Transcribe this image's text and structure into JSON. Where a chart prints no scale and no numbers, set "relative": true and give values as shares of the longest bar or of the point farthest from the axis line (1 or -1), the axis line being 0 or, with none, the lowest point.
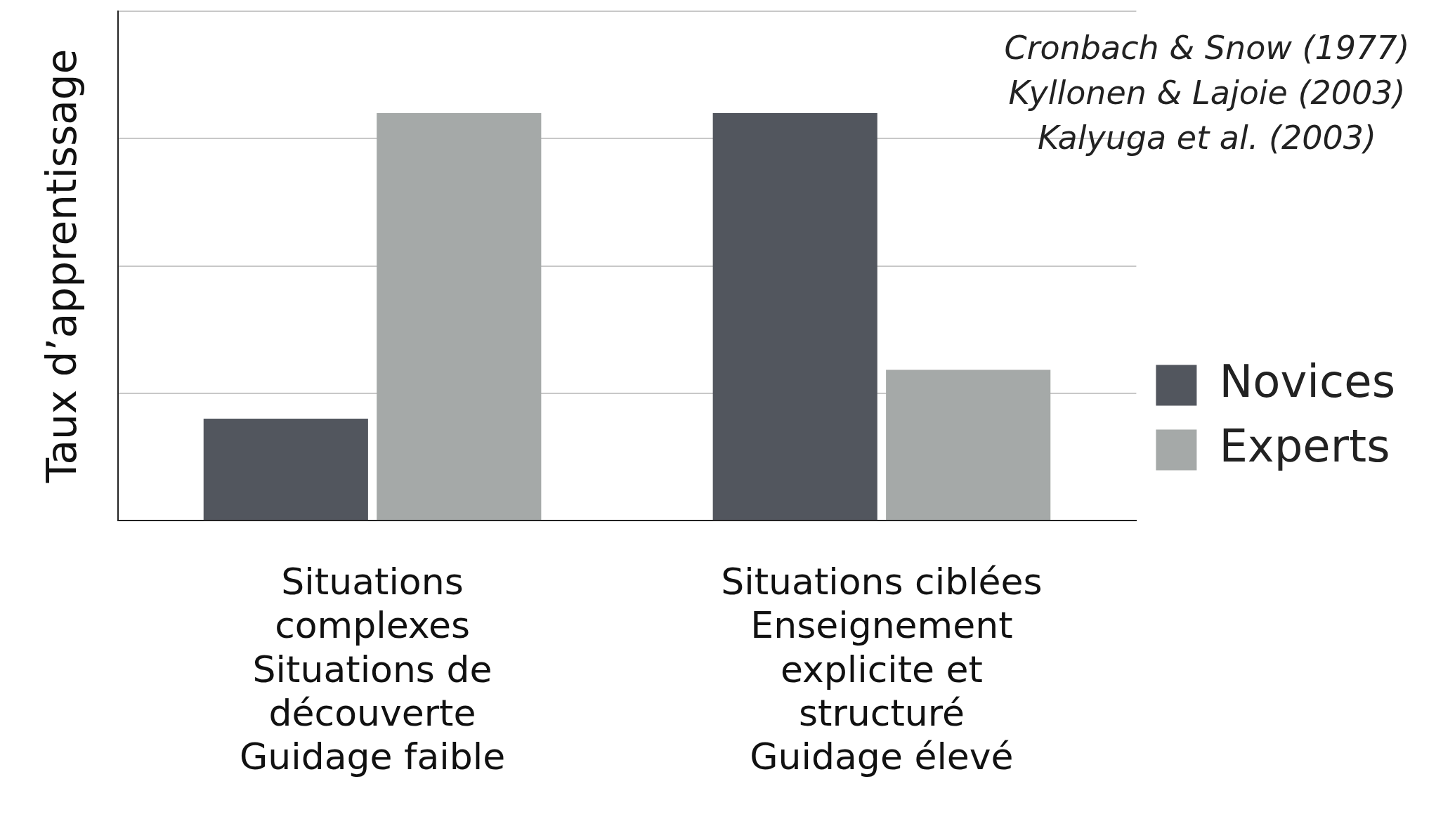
{
  "chart_data": {
    "type": "bar",
    "relative": true,
    "ylabel": "Taux d’apprentissage",
    "categories": [
      "Situations complexes\nSituations de découverte\nGuidage faible",
      "Situations ciblées\nEnseignement explicite et structuré\nGuidage élevé"
    ],
    "series": [
      {
        "name": "Novices",
        "color": "#52565e",
        "values": [
          0.25,
          1
        ]
      },
      {
        "name": "Experts",
        "color": "#a5a9a8",
        "values": [
          1,
          0.37
        ]
      }
    ],
    "legend": "right",
    "grid": "y",
    "annotations": [
      "Cronbach & Snow (1977)",
      "Kyllonen & Lajoie (2003)",
      "Kalyuga et al. (2003)"
    ]
  }
}
